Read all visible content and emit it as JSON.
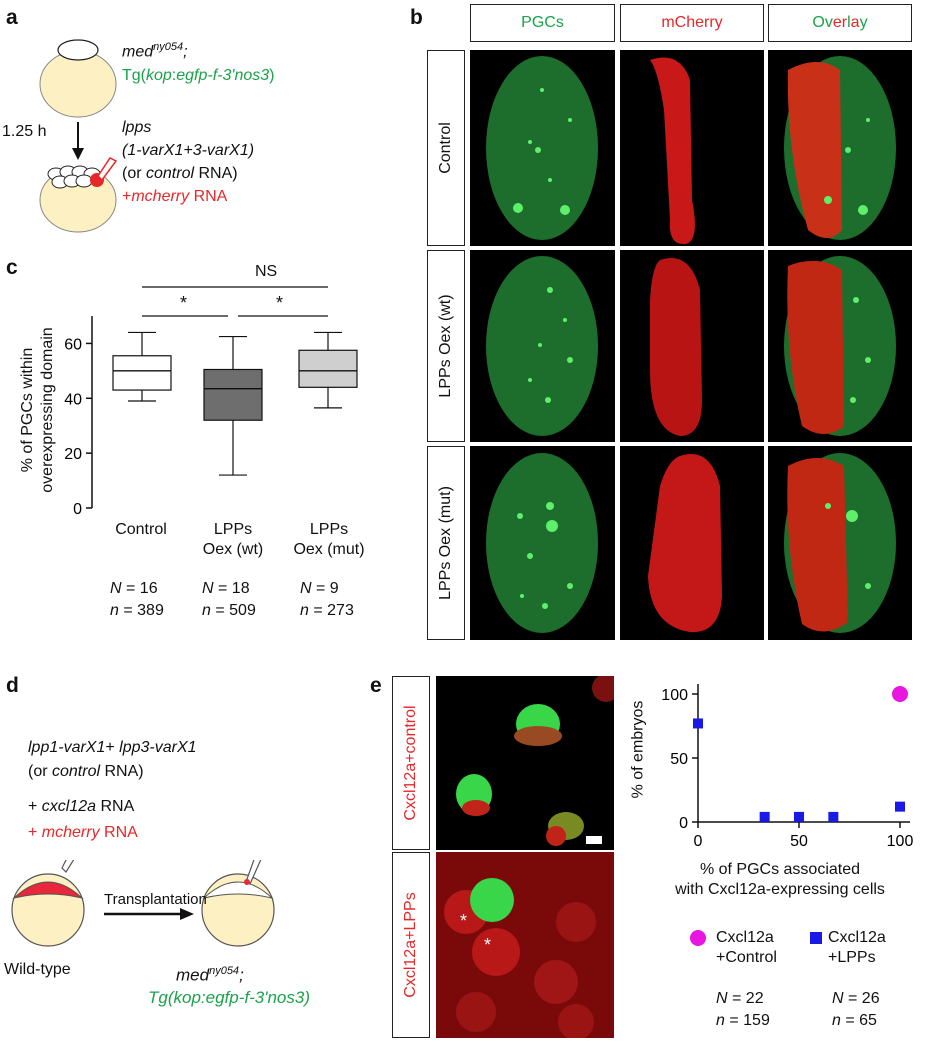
{
  "panel_labels": {
    "a": "a",
    "b": "b",
    "c": "c",
    "d": "d",
    "e": "e"
  },
  "panel_a": {
    "line1": "med",
    "line1_sup": "ny054",
    "line1_end": ";",
    "line2_pre": "Tg(",
    "line2_it1": "kop",
    "line2_mid": ":",
    "line2_it2": "egfp-f-3'nos3",
    "line2_end": ")",
    "time": "1.25 h",
    "inj1": "lpps",
    "inj2": "(1-varX1+3-varX1)",
    "inj3_pre": "(or ",
    "inj3_it": "control",
    "inj3_end": " RNA)",
    "inj4_pre": "+",
    "inj4_it": "mcherry",
    "inj4_end": " RNA"
  },
  "panel_b": {
    "col_headers": [
      "PGCs",
      "mCherry"
    ],
    "overlay_parts": [
      "Ov",
      "er",
      "l",
      "a",
      "y"
    ],
    "row_labels": [
      "Control",
      "LPPs Oex (wt)",
      "LPPs Oex (mut)"
    ]
  },
  "panel_c": {
    "ylabel_line1": "% of PGCs within",
    "ylabel_line2": "overexpressing domain",
    "yticks": [
      "0",
      "20",
      "40",
      "60"
    ],
    "categories": [
      "Control",
      "LPPs",
      "LPPs"
    ],
    "categories_line2": [
      "",
      "Oex (wt)",
      "Oex (mut)"
    ],
    "sig_top": "NS",
    "sig_left": "*",
    "sig_right": "*",
    "N_prefix": "N",
    "n_prefix": "n",
    "N_values": [
      "16",
      "18",
      "9"
    ],
    "n_values": [
      "389",
      "509",
      "273"
    ]
  },
  "panel_d": {
    "line1_it1": "lpp1-varX1",
    "line1_mid": "+ ",
    "line1_it2": "lpp3-varX1",
    "line2_pre": "(or ",
    "line2_it": "control",
    "line2_end": " RNA)",
    "line3_pre": "+ ",
    "line3_it": "cxcl12a",
    "line3_end": " RNA",
    "line4_pre": "+ ",
    "line4_it": "mcherry",
    "line4_end": " RNA",
    "transplant": "Transplantation",
    "wildtype": "Wild-type",
    "recipient1": "med",
    "recipient1_sup": "ny054",
    "recipient1_end": ";",
    "recipient2_pre": "Tg(",
    "recipient2_it": "kop",
    "recipient2_mid": ":egfp-f-3'nos3)"
  },
  "panel_e": {
    "row_labels": [
      "Cxcl12a+control",
      "Cxcl12a+LPPs"
    ],
    "asterisk": "*",
    "ylabel": "% of embryos",
    "xlabel_line1": "% of PGCs associated",
    "xlabel_line2": "with Cxcl12a-expressing cells",
    "yticks": [
      "0",
      "50",
      "100"
    ],
    "xticks": [
      "0",
      "50",
      "100"
    ],
    "legend": [
      {
        "line1": "Cxcl12a",
        "line2": "+Control",
        "N": "22",
        "n": "159"
      },
      {
        "line1": "Cxcl12a",
        "line2": "+LPPs",
        "N": "26",
        "n": "65"
      }
    ]
  },
  "chart_data": [
    {
      "type": "box",
      "categories": [
        "Control",
        "LPPs Oex (wt)",
        "LPPs Oex (mut)"
      ],
      "ylim": [
        0,
        70
      ],
      "boxes": [
        {
          "whisker_low": 39,
          "q1": 43,
          "median": 50,
          "q3": 55.5,
          "whisker_high": 64,
          "fill": "#ffffff"
        },
        {
          "whisker_low": 12,
          "q1": 32,
          "median": 43.5,
          "q3": 50.5,
          "whisker_high": 62.5,
          "fill": "#6e6e6e"
        },
        {
          "whisker_low": 36.5,
          "q1": 44,
          "median": 50,
          "q3": 57.5,
          "whisker_high": 64,
          "fill": "#cfcfcf"
        }
      ]
    },
    {
      "type": "scatter",
      "xlim": [
        0,
        100
      ],
      "ylim": [
        0,
        100
      ],
      "series": [
        {
          "name": "Cxcl12a +Control",
          "color": "#e816e0",
          "marker": "circle",
          "points": [
            [
              100,
              100
            ]
          ]
        },
        {
          "name": "Cxcl12a +LPPs",
          "color": "#1a1ae6",
          "marker": "square",
          "points": [
            [
              0,
              77
            ],
            [
              33,
              4
            ],
            [
              50,
              4
            ],
            [
              67,
              4
            ],
            [
              100,
              12
            ]
          ]
        }
      ]
    }
  ]
}
